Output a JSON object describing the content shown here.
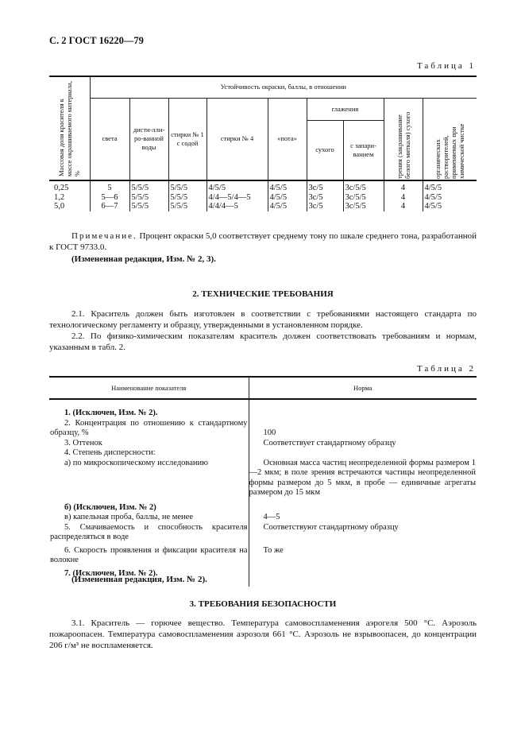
{
  "header": "С. 2 ГОСТ 16220—79",
  "table1": {
    "caption": "Таблица 1",
    "col_mass": "Массовая доля красителя к массе окрашиваемого материала, %",
    "group": "Устойчивость окраски, баллы, в отношении",
    "cols": [
      "света",
      "дисти-лли­ро-ванной воды",
      "стирки № 1 с содой",
      "стирки № 4",
      "«пота»"
    ],
    "glazh": "глажения",
    "glazh_sub": [
      "сухого",
      "с запари-ванием"
    ],
    "col_trenie": "трения (закрашивание белого миткаля) сухого",
    "col_org": "органических растворителей, применяемых при химической чистке",
    "rows": [
      [
        "0,25",
        "5",
        "5/5/5",
        "5/5/5",
        "4/5/5",
        "4/5/5",
        "3с/5",
        "3с/5/5",
        "4",
        "4/5/5"
      ],
      [
        "1,2",
        "5—6",
        "5/5/5",
        "5/5/5",
        "4/4—5/4—5",
        "4/5/5",
        "3с/5",
        "3с/5/5",
        "4",
        "4/5/5"
      ],
      [
        "5,0",
        "6—7",
        "5/5/5",
        "5/5/5",
        "4/4/4—5",
        "4/5/5",
        "3с/5",
        "3с/5/5",
        "4",
        "4/5/5"
      ]
    ]
  },
  "note_label": "Примечание.",
  "note": " Процент окраски 5,0 соответствует среднему тону по шкале среднего тона, разработанной к ГОСТ 9733.0.",
  "edit1": "(Измененная редакция, Изм. № 2, 3).",
  "section2": "2. ТЕХНИЧЕСКИЕ ТРЕБОВАНИЯ",
  "p21": "2.1. Краситель должен быть изготовлен в соответствии с требованиями настоящего стандарта по технологическому регламенту и образцу, утвержденными в установленном порядке.",
  "p22": "2.2. По физико-химическим показателям краситель должен соответствовать требованиям и нормам, указанным в табл. 2.",
  "table2": {
    "caption": "Таблица 2",
    "head": [
      "Наименование показателя",
      "Норма"
    ],
    "rows": [
      {
        "name": "1. (Исключен, Изм. № 2).",
        "norm": "",
        "bold": true
      },
      {
        "name": "2. Концентрация по отношению к стандартному образцу, %",
        "norm": "100"
      },
      {
        "name": "3. Оттенок",
        "norm": "Соответствует стандартному образцу"
      },
      {
        "name": "4. Степень дисперсности:",
        "norm": ""
      },
      {
        "name": "а) по микроскопическому исследованию",
        "norm": "Основная масса частиц неопределенной формы размером 1—2 мкм; в поле зрения встречаются частицы неопределенной формы размером до 5 мкм, в пробе — единичные агрегаты размером до 15 мкм"
      },
      {
        "name": "б) (Исключен, Изм. № 2)",
        "norm": "",
        "bold": true
      },
      {
        "name": "в) капельная проба, баллы, не менее",
        "norm": "4—5"
      },
      {
        "name": "5. Смачиваемость и способность красителя распределяться в воде",
        "norm": "Соответствуют стандартному образцу"
      },
      {
        "name": "6. Скорость проявления и фиксации красителя на волокне",
        "norm": "То же"
      },
      {
        "name": "7. (Исключен, Изм. № 2).",
        "norm": "",
        "bold": true
      }
    ]
  },
  "edit2": "(Измененная редакция, Изм. № 2).",
  "section3": "3. ТРЕБОВАНИЯ БЕЗОПАСНОСТИ",
  "p31": "3.1. Краситель — горючее вещество. Температура самовоспламенения аэрогеля 500 °С. Аэрозоль пожароопасен. Температура самовоспламенения аэрозоля 661 °С. Аэрозоль не взрывоопасен, до концентрации 206 г/м³ не воспламеняется."
}
